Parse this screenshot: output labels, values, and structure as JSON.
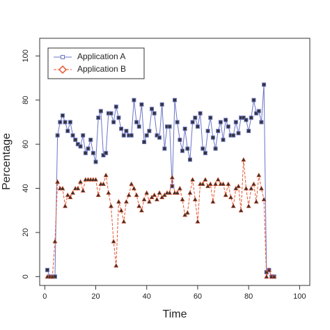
{
  "chart_data": {
    "type": "line",
    "x_label": "Time",
    "y_label": "Percentage",
    "x": [
      1,
      2,
      3,
      4,
      5,
      6,
      7,
      8,
      9,
      10,
      11,
      12,
      13,
      14,
      15,
      16,
      17,
      18,
      19,
      20,
      21,
      22,
      23,
      24,
      25,
      26,
      27,
      28,
      29,
      30,
      31,
      32,
      33,
      34,
      35,
      36,
      37,
      38,
      39,
      40,
      41,
      42,
      43,
      44,
      45,
      46,
      47,
      48,
      49,
      50,
      51,
      52,
      53,
      54,
      55,
      56,
      57,
      58,
      59,
      60,
      61,
      62,
      63,
      64,
      65,
      66,
      67,
      68,
      69,
      70,
      71,
      72,
      73,
      74,
      75,
      76,
      77,
      78,
      79,
      80,
      81,
      82,
      83,
      84,
      85,
      86,
      87,
      88,
      89,
      90
    ],
    "series": [
      {
        "name": "Application A",
        "color": "#6a74c6",
        "line_style": "solid",
        "marker": "square",
        "values": [
          3,
          0,
          0,
          0,
          64,
          70,
          73,
          70,
          66,
          70,
          64,
          62,
          60,
          59,
          64,
          56,
          58,
          62,
          56,
          52,
          72,
          75,
          55,
          56,
          74,
          74,
          70,
          77,
          72,
          67,
          64,
          66,
          64,
          64,
          80,
          70,
          68,
          78,
          61,
          64,
          66,
          76,
          74,
          64,
          63,
          78,
          58,
          68,
          68,
          41,
          80,
          70,
          62,
          57,
          67,
          58,
          53,
          70,
          72,
          68,
          74,
          58,
          56,
          66,
          72,
          63,
          58,
          66,
          70,
          62,
          71,
          68,
          64,
          64,
          70,
          65,
          72,
          72,
          71,
          66,
          72,
          80,
          74,
          75,
          70,
          87,
          2,
          3,
          0,
          0
        ]
      },
      {
        "name": "Application B",
        "color": "#e8532b",
        "line_style": "dashed",
        "marker": "diamond",
        "values": [
          0,
          0,
          0,
          16,
          43,
          40,
          40,
          32,
          37,
          36,
          38,
          40,
          40,
          43,
          39,
          44,
          44,
          44,
          44,
          44,
          37,
          42,
          42,
          46,
          38,
          32,
          16,
          5,
          34,
          30,
          25,
          34,
          37,
          42,
          40,
          37,
          32,
          30,
          35,
          38,
          34,
          36,
          37,
          35,
          38,
          36,
          37,
          38,
          38,
          45,
          38,
          38,
          40,
          35,
          28,
          29,
          38,
          44,
          35,
          25,
          42,
          42,
          44,
          41,
          42,
          34,
          42,
          44,
          42,
          42,
          37,
          42,
          36,
          32,
          40,
          41,
          30,
          53,
          40,
          32,
          40,
          42,
          34,
          46,
          40,
          35,
          0,
          3,
          0,
          0
        ]
      }
    ],
    "xlim": [
      -2,
      104
    ],
    "ylim": [
      -4,
      108
    ],
    "xticks": [
      0,
      20,
      40,
      60,
      80,
      100
    ],
    "yticks": [
      0,
      20,
      40,
      60,
      80,
      100
    ],
    "legend": "top-left",
    "grid": false
  }
}
